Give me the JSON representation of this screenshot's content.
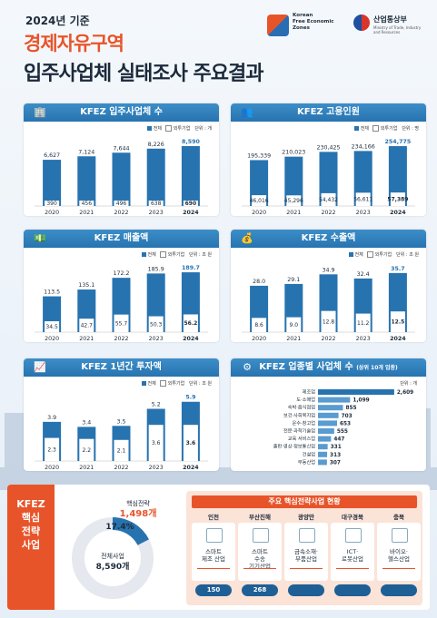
{
  "header": {
    "year": "2024년 기준",
    "title1": "경제자유구역",
    "title2": "입주사업체 실태조사 주요결과",
    "logo1_text": [
      "Korean",
      "Free Economic",
      "Zones"
    ],
    "logo2_name": "산업통상부",
    "logo2_sub": "Ministry of Trade, Industry and Resources"
  },
  "colors": {
    "primary": "#2773b0",
    "accent": "#e8542a",
    "bar_light": "#ffffff"
  },
  "legend": {
    "total": "전체",
    "foreign": "외투기업"
  },
  "chart_data": [
    {
      "type": "bar",
      "id": "companies",
      "title": "KFEZ 입주사업체 수",
      "unit": "단위 : 개",
      "categories": [
        "2020",
        "2021",
        "2022",
        "2023",
        "2024"
      ],
      "series": [
        {
          "name": "전체",
          "values": [
            6627,
            7124,
            7644,
            8226,
            8590
          ],
          "labels": [
            "6,627",
            "7,124",
            "7,644",
            "8,226",
            "8,590"
          ]
        },
        {
          "name": "외투기업",
          "values": [
            390,
            456,
            496,
            638,
            690
          ],
          "labels": [
            "390",
            "456",
            "496",
            "638",
            "690"
          ]
        }
      ],
      "ylim": [
        0,
        9500
      ]
    },
    {
      "type": "bar",
      "id": "employment",
      "title": "KFEZ 고용인원",
      "unit": "단위 : 명",
      "categories": [
        "2020",
        "2021",
        "2022",
        "2023",
        "2024"
      ],
      "series": [
        {
          "name": "전체",
          "values": [
            195339,
            210023,
            230425,
            234166,
            254775
          ],
          "labels": [
            "195,339",
            "210,023",
            "230,425",
            "234,166",
            "254,775"
          ]
        },
        {
          "name": "외투기업",
          "values": [
            46016,
            45296,
            54432,
            56611,
            57389
          ],
          "labels": [
            "46,016",
            "45,296",
            "54,432",
            "56,611",
            "57,389"
          ]
        }
      ],
      "ylim": [
        0,
        282000
      ]
    },
    {
      "type": "bar",
      "id": "sales",
      "title": "KFEZ 매출액",
      "unit": "단위 : 조 원",
      "categories": [
        "2020",
        "2021",
        "2022",
        "2023",
        "2024"
      ],
      "series": [
        {
          "name": "전체",
          "values": [
            113.5,
            135.1,
            172.2,
            185.9,
            189.7
          ],
          "labels": [
            "113.5",
            "135.1",
            "172.2",
            "185.9",
            "189.7"
          ]
        },
        {
          "name": "외투기업",
          "values": [
            34.5,
            42.7,
            55.7,
            50.3,
            56.2
          ],
          "labels": [
            "34.5",
            "42.7",
            "55.7",
            "50.3",
            "56.2"
          ]
        }
      ],
      "ylim": [
        0,
        210
      ]
    },
    {
      "type": "bar",
      "id": "exports",
      "title": "KFEZ 수출액",
      "unit": "단위 : 조 원",
      "categories": [
        "2020",
        "2021",
        "2022",
        "2023",
        "2024"
      ],
      "series": [
        {
          "name": "전체",
          "values": [
            28.0,
            29.1,
            34.9,
            32.4,
            35.7
          ],
          "labels": [
            "28.0",
            "29.1",
            "34.9",
            "32.4",
            "35.7"
          ]
        },
        {
          "name": "외투기업",
          "values": [
            8.6,
            9.0,
            12.8,
            11.2,
            12.5
          ],
          "labels": [
            "8.6",
            "9.0",
            "12.8",
            "11.2",
            "12.5"
          ]
        }
      ],
      "ylim": [
        0,
        40
      ]
    },
    {
      "type": "bar",
      "id": "investment",
      "title": "KFEZ 1년간 투자액",
      "unit": "단위 : 조 원",
      "categories": [
        "2020",
        "2021",
        "2022",
        "2023",
        "2024"
      ],
      "series": [
        {
          "name": "전체",
          "values": [
            3.9,
            3.4,
            3.5,
            5.2,
            5.9
          ],
          "labels": [
            "3.9",
            "3.4",
            "3.5",
            "5.2",
            "5.9"
          ]
        },
        {
          "name": "외투기업",
          "values": [
            2.3,
            2.2,
            2.1,
            3.6,
            3.6
          ],
          "labels": [
            "2.3",
            "2.2",
            "2.1",
            "3.6",
            "3.6"
          ]
        }
      ],
      "ylim": [
        0,
        6.6
      ]
    },
    {
      "type": "bar",
      "id": "industry",
      "title": "KFEZ 업종별 사업체 수",
      "subtitle": "(상위 10개 업종)",
      "unit": "단위 : 개",
      "categories": [
        "제조업",
        "도·소매업",
        "숙박·음식점업",
        "보건·사회복지업",
        "운수·창고업",
        "전문·과학기술업",
        "교육 서비스업",
        "출판·영상·정보통신업",
        "건설업",
        "부동산업"
      ],
      "values": [
        2609,
        1099,
        855,
        703,
        653,
        555,
        447,
        331,
        313,
        307
      ],
      "labels": [
        "2,609",
        "1,099",
        "855",
        "703",
        "653",
        "555",
        "447",
        "331",
        "313",
        "307"
      ],
      "xlim": [
        0,
        2800
      ]
    }
  ],
  "core": {
    "side_label": [
      "KFEZ",
      "핵심",
      "전략",
      "사업"
    ],
    "donut": {
      "type": "pie",
      "core_label": "핵심전략",
      "core_value": "1,498개",
      "percent": "17.4%",
      "percent_value": 17.4,
      "total_label": "전체사업",
      "total_value": "8,590개"
    },
    "title": "주요 핵심전략사업 현황",
    "regions": [
      {
        "name": "인천",
        "lines": [
          "스마트",
          "제조 산업"
        ],
        "count": "150"
      },
      {
        "name": "부산진해",
        "lines": [
          "스마트",
          "수송",
          "기기산업"
        ],
        "count": "268"
      },
      {
        "name": "광양만",
        "lines": [
          "금속소재·",
          "부품산업"
        ],
        "count": ""
      },
      {
        "name": "대구경북",
        "lines": [
          "ICT·",
          "로봇산업"
        ],
        "count": ""
      },
      {
        "name": "충북",
        "lines": [
          "바이오·",
          "헬스산업"
        ],
        "count": ""
      }
    ]
  }
}
